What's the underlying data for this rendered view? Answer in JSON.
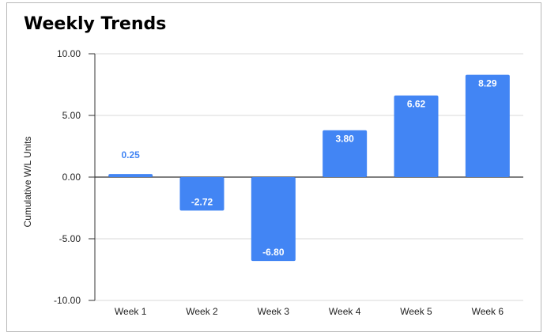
{
  "chart_data": {
    "type": "bar",
    "title": "Weekly Trends",
    "xlabel": "",
    "ylabel": "Cumulative W/L Units",
    "categories": [
      "Week 1",
      "Week 2",
      "Week 3",
      "Week 4",
      "Week 5",
      "Week 6"
    ],
    "values": [
      0.25,
      -2.72,
      -6.8,
      3.8,
      6.62,
      8.29
    ],
    "data_labels": [
      "0.25",
      "-2.72",
      "-6.80",
      "3.80",
      "6.62",
      "8.29"
    ],
    "ylim": [
      -10,
      10
    ],
    "yticks": [
      "10.00",
      "5.00",
      "0.00",
      "-5.00",
      "-10.00"
    ],
    "grid": true,
    "legend": "none",
    "colors": {
      "bar": "#4285f4",
      "label_inside": "#ffffff",
      "label_outside": "#4285f4"
    }
  }
}
